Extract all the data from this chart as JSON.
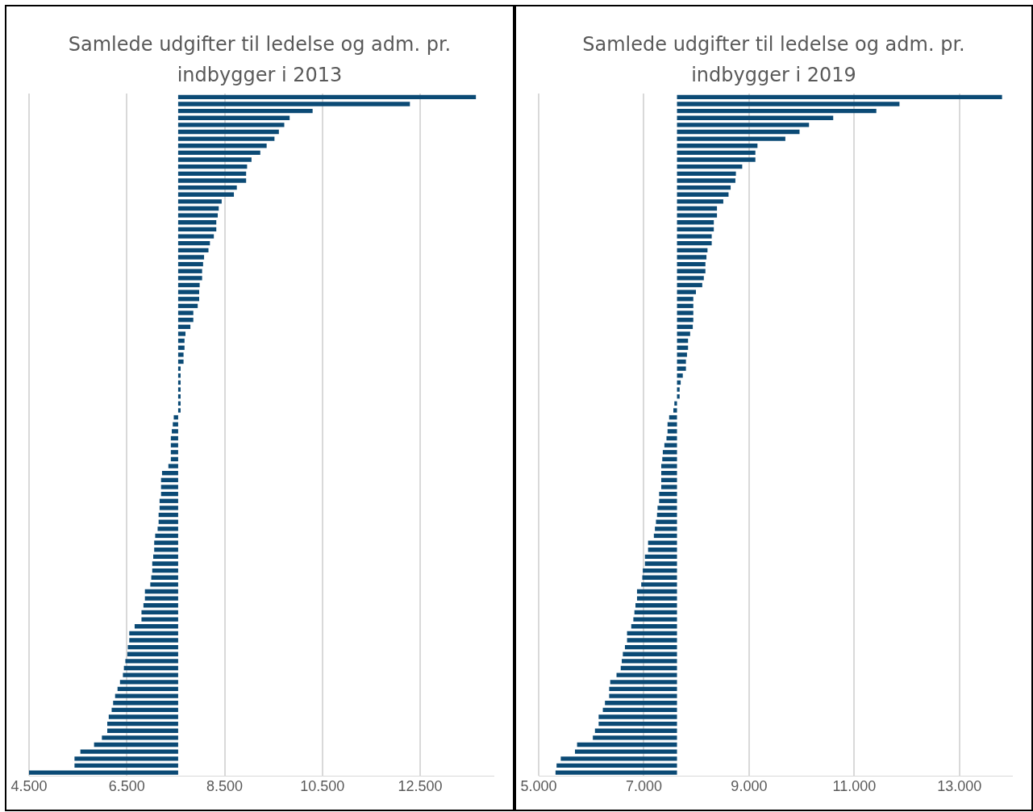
{
  "chart_data": [
    {
      "type": "bar",
      "orientation": "horizontal",
      "title": "Samlede udgifter til ledelse og adm. pr. indbygger i 2013",
      "color": "#0b4a75",
      "grid": "x",
      "tick_labels": "x",
      "categories": [
        null,
        null,
        null,
        null,
        null,
        null,
        null,
        null,
        null,
        null,
        null,
        null,
        null,
        null,
        null,
        null,
        null,
        null,
        null,
        null,
        null,
        null,
        null,
        null,
        null,
        null,
        null,
        null,
        null,
        null,
        null,
        null,
        null,
        null,
        null,
        null,
        null,
        null,
        null,
        null,
        null,
        null,
        null,
        null,
        null,
        null,
        null,
        null,
        null,
        null,
        null,
        null,
        null,
        null,
        null,
        null,
        null,
        null,
        null,
        null,
        null,
        null,
        null,
        null,
        null,
        null,
        null,
        null,
        null,
        null,
        null,
        null,
        null,
        null,
        null,
        null,
        null,
        null,
        null,
        null,
        null,
        null,
        null,
        null,
        null,
        null,
        null,
        null,
        null,
        null,
        null,
        null,
        null,
        null,
        null,
        null,
        null,
        null
      ],
      "base": [
        7550,
        7550,
        7550,
        7550,
        7550,
        7550,
        7550,
        7550,
        7550,
        7550,
        7550,
        7550,
        7550,
        7550,
        7550,
        7550,
        7550,
        7550,
        7550,
        7550,
        7550,
        7550,
        7550,
        7550,
        7550,
        7550,
        7550,
        7550,
        7550,
        7550,
        7550,
        7550,
        7550,
        7550,
        7550,
        7550,
        7550,
        7550,
        7550,
        7550,
        7550,
        7550,
        7550,
        7550,
        7550,
        7550,
        7550,
        7550,
        7550,
        7550,
        7550,
        7550,
        7550,
        7550,
        7550,
        7550,
        7550,
        7550,
        7550,
        7550,
        7550,
        7550,
        7550,
        7550,
        7550,
        7550,
        7550,
        7550,
        7550,
        7550,
        7550,
        7550,
        7550,
        7550,
        7550,
        7550,
        7550,
        7550,
        7550,
        7550,
        7550,
        7550,
        7550,
        7550,
        7550,
        7550,
        7550,
        7550,
        7550,
        7550,
        7550,
        7550,
        7550,
        7550,
        7550,
        7550,
        7550,
        7550
      ],
      "values": [
        6090,
        4740,
        2750,
        2280,
        2170,
        2060,
        1970,
        1810,
        1680,
        1500,
        1410,
        1390,
        1390,
        1200,
        1140,
        890,
        830,
        810,
        780,
        780,
        730,
        650,
        620,
        530,
        510,
        490,
        490,
        440,
        430,
        430,
        400,
        310,
        310,
        250,
        150,
        130,
        130,
        110,
        110,
        50,
        50,
        50,
        50,
        50,
        50,
        50,
        -90,
        -110,
        -130,
        -150,
        -150,
        -150,
        -150,
        -200,
        -330,
        -350,
        -350,
        -350,
        -380,
        -380,
        -400,
        -400,
        -420,
        -470,
        -490,
        -490,
        -510,
        -530,
        -530,
        -550,
        -570,
        -680,
        -680,
        -710,
        -750,
        -750,
        -890,
        -1000,
        -1000,
        -1030,
        -1040,
        -1080,
        -1110,
        -1130,
        -1190,
        -1240,
        -1290,
        -1330,
        -1360,
        -1420,
        -1450,
        -1450,
        -1560,
        -1720,
        -2000,
        -2120,
        -2120,
        -3050
      ],
      "xlim": [
        4500,
        14000
      ],
      "xticks": [
        {
          "value": 4500,
          "label": "4.500"
        },
        {
          "value": 6500,
          "label": "6.500"
        },
        {
          "value": 8500,
          "label": "8.500"
        },
        {
          "value": 10500,
          "label": "10.500"
        },
        {
          "value": 12500,
          "label": "12.500"
        }
      ]
    },
    {
      "type": "bar",
      "orientation": "horizontal",
      "title": "Samlede udgifter til ledelse og adm. pr. indbygger i 2019",
      "color": "#0b4a75",
      "grid": "x",
      "tick_labels": "x",
      "categories": [
        null,
        null,
        null,
        null,
        null,
        null,
        null,
        null,
        null,
        null,
        null,
        null,
        null,
        null,
        null,
        null,
        null,
        null,
        null,
        null,
        null,
        null,
        null,
        null,
        null,
        null,
        null,
        null,
        null,
        null,
        null,
        null,
        null,
        null,
        null,
        null,
        null,
        null,
        null,
        null,
        null,
        null,
        null,
        null,
        null,
        null,
        null,
        null,
        null,
        null,
        null,
        null,
        null,
        null,
        null,
        null,
        null,
        null,
        null,
        null,
        null,
        null,
        null,
        null,
        null,
        null,
        null,
        null,
        null,
        null,
        null,
        null,
        null,
        null,
        null,
        null,
        null,
        null,
        null,
        null,
        null,
        null,
        null,
        null,
        null,
        null,
        null,
        null,
        null,
        null,
        null,
        null,
        null,
        null,
        null,
        null,
        null,
        null
      ],
      "base": [
        7630,
        7630,
        7630,
        7630,
        7630,
        7630,
        7630,
        7630,
        7630,
        7630,
        7630,
        7630,
        7630,
        7630,
        7630,
        7630,
        7630,
        7630,
        7630,
        7630,
        7630,
        7630,
        7630,
        7630,
        7630,
        7630,
        7630,
        7630,
        7630,
        7630,
        7630,
        7630,
        7630,
        7630,
        7630,
        7630,
        7630,
        7630,
        7630,
        7630,
        7630,
        7630,
        7630,
        7630,
        7630,
        7630,
        7630,
        7630,
        7630,
        7630,
        7630,
        7630,
        7630,
        7630,
        7630,
        7630,
        7630,
        7630,
        7630,
        7630,
        7630,
        7630,
        7630,
        7630,
        7630,
        7630,
        7630,
        7630,
        7630,
        7630,
        7630,
        7630,
        7630,
        7630,
        7630,
        7630,
        7630,
        7630,
        7630,
        7630,
        7630,
        7630,
        7630,
        7630,
        7630,
        7630,
        7630,
        7630,
        7630,
        7630,
        7630,
        7630,
        7630,
        7630,
        7630,
        7630,
        7630,
        7630
      ],
      "values": [
        6180,
        4230,
        3790,
        2970,
        2510,
        2330,
        2060,
        1530,
        1490,
        1490,
        1240,
        1120,
        1110,
        1020,
        980,
        880,
        760,
        760,
        700,
        700,
        660,
        660,
        580,
        560,
        540,
        540,
        510,
        480,
        360,
        310,
        310,
        310,
        310,
        300,
        250,
        210,
        210,
        190,
        170,
        170,
        110,
        70,
        50,
        50,
        -50,
        -70,
        -150,
        -180,
        -180,
        -200,
        -240,
        -270,
        -280,
        -300,
        -300,
        -300,
        -300,
        -340,
        -340,
        -370,
        -380,
        -400,
        -420,
        -440,
        -550,
        -550,
        -610,
        -610,
        -650,
        -660,
        -680,
        -760,
        -760,
        -790,
        -810,
        -830,
        -870,
        -950,
        -950,
        -990,
        -1030,
        -1050,
        -1070,
        -1150,
        -1270,
        -1290,
        -1290,
        -1370,
        -1410,
        -1490,
        -1490,
        -1560,
        -1600,
        -1900,
        -1940,
        -2210,
        -2290,
        -2310
      ],
      "xlim": [
        5000,
        14000
      ],
      "xticks": [
        {
          "value": 5000,
          "label": "5.000"
        },
        {
          "value": 7000,
          "label": "7.000"
        },
        {
          "value": 9000,
          "label": "9.000"
        },
        {
          "value": 11000,
          "label": "11.000"
        },
        {
          "value": 13000,
          "label": "13.000"
        }
      ]
    }
  ]
}
